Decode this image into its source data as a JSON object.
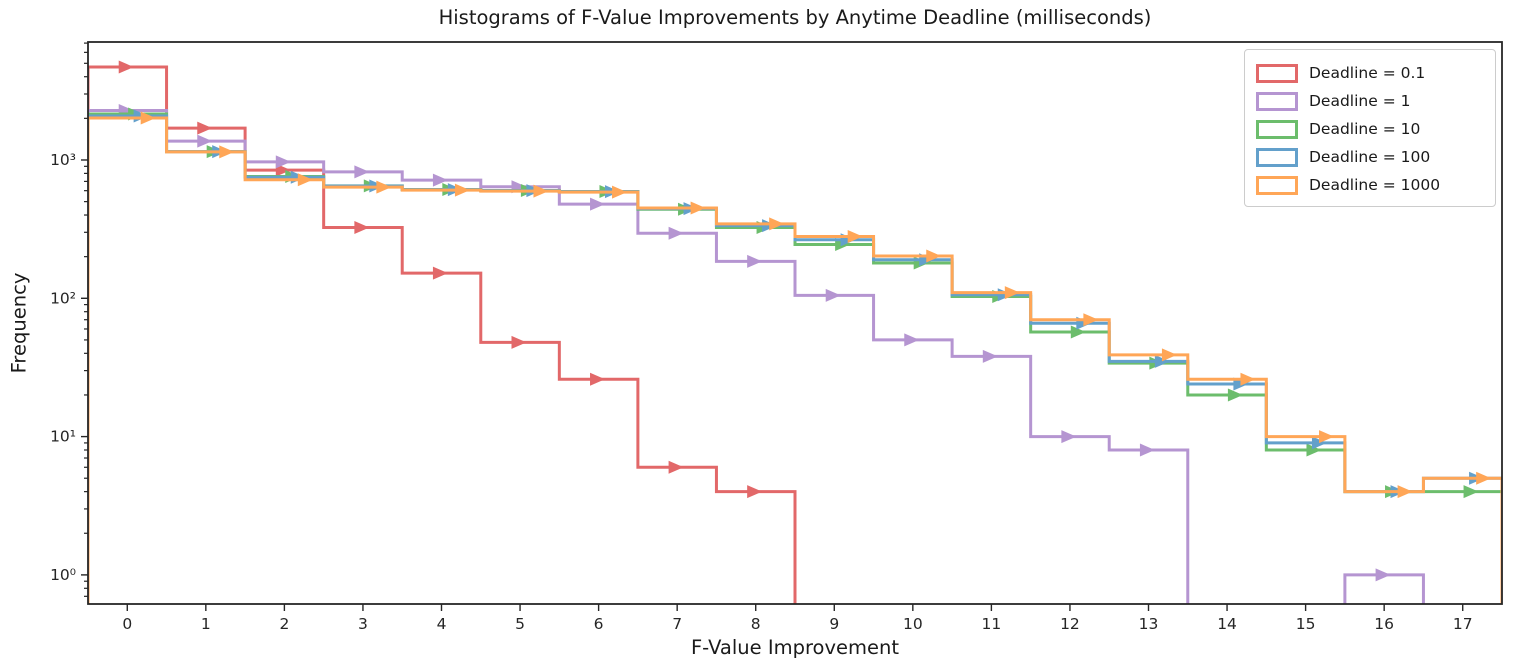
{
  "chart_data": {
    "type": "step-histogram",
    "title": "Histograms of F-Value Improvements by Anytime Deadline (milliseconds)",
    "xlabel": "F-Value Improvement",
    "ylabel": "Frequency",
    "grid": false,
    "legend_position": "upper right",
    "xlim": [
      -0.5,
      17.5
    ],
    "ylim": [
      0.616,
      7130
    ],
    "y_scale": "log",
    "bin_edges": [
      -0.5,
      0.5,
      1.5,
      2.5,
      3.5,
      4.5,
      5.5,
      6.5,
      7.5,
      8.5,
      9.5,
      10.5,
      11.5,
      12.5,
      13.5,
      14.5,
      15.5,
      16.5,
      17.5
    ],
    "bin_centers": [
      0,
      1,
      2,
      3,
      4,
      5,
      6,
      7,
      8,
      9,
      10,
      11,
      12,
      13,
      14,
      15,
      16,
      17
    ],
    "xticks": [
      0,
      1,
      2,
      3,
      4,
      5,
      6,
      7,
      8,
      9,
      10,
      11,
      12,
      13,
      14,
      15,
      16,
      17
    ],
    "yticks": [
      {
        "value": 1,
        "label": "10⁰"
      },
      {
        "value": 10,
        "label": "10¹"
      },
      {
        "value": 100,
        "label": "10²"
      },
      {
        "value": 1000,
        "label": "10³"
      }
    ],
    "series": [
      {
        "name": "Deadline = 0.1",
        "color": "#e26869",
        "marker": "triangle-right",
        "marker_offset": -0.02,
        "values": [
          4700,
          1700,
          845,
          325,
          152,
          48,
          26,
          6,
          4,
          0,
          0,
          0,
          0,
          0,
          0,
          0,
          0,
          0
        ]
      },
      {
        "name": "Deadline = 1",
        "color": "#b595d1",
        "marker": "triangle-right",
        "marker_offset": -0.02,
        "values": [
          2280,
          1370,
          970,
          820,
          715,
          640,
          480,
          295,
          185,
          105,
          50,
          38,
          10,
          8,
          0,
          0,
          1,
          0
        ]
      },
      {
        "name": "Deadline = 10",
        "color": "#6cbd6c",
        "marker": "triangle-right",
        "marker_offset": 0.1,
        "values": [
          2150,
          1150,
          760,
          650,
          612,
          602,
          592,
          440,
          325,
          245,
          180,
          103,
          57,
          34,
          20,
          8,
          4,
          4
        ]
      },
      {
        "name": "Deadline = 100",
        "color": "#63a0cb",
        "marker": "triangle-right",
        "marker_offset": 0.17,
        "values": [
          2080,
          1150,
          750,
          648,
          610,
          600,
          590,
          445,
          335,
          265,
          190,
          106,
          66,
          35,
          24,
          9,
          4,
          5
        ]
      },
      {
        "name": "Deadline = 1000",
        "color": "#ffa657",
        "marker": "triangle-right",
        "marker_offset": 0.26,
        "values": [
          2010,
          1145,
          720,
          636,
          605,
          596,
          586,
          450,
          345,
          280,
          202,
          110,
          70,
          39,
          26,
          10,
          4,
          5
        ]
      }
    ]
  }
}
